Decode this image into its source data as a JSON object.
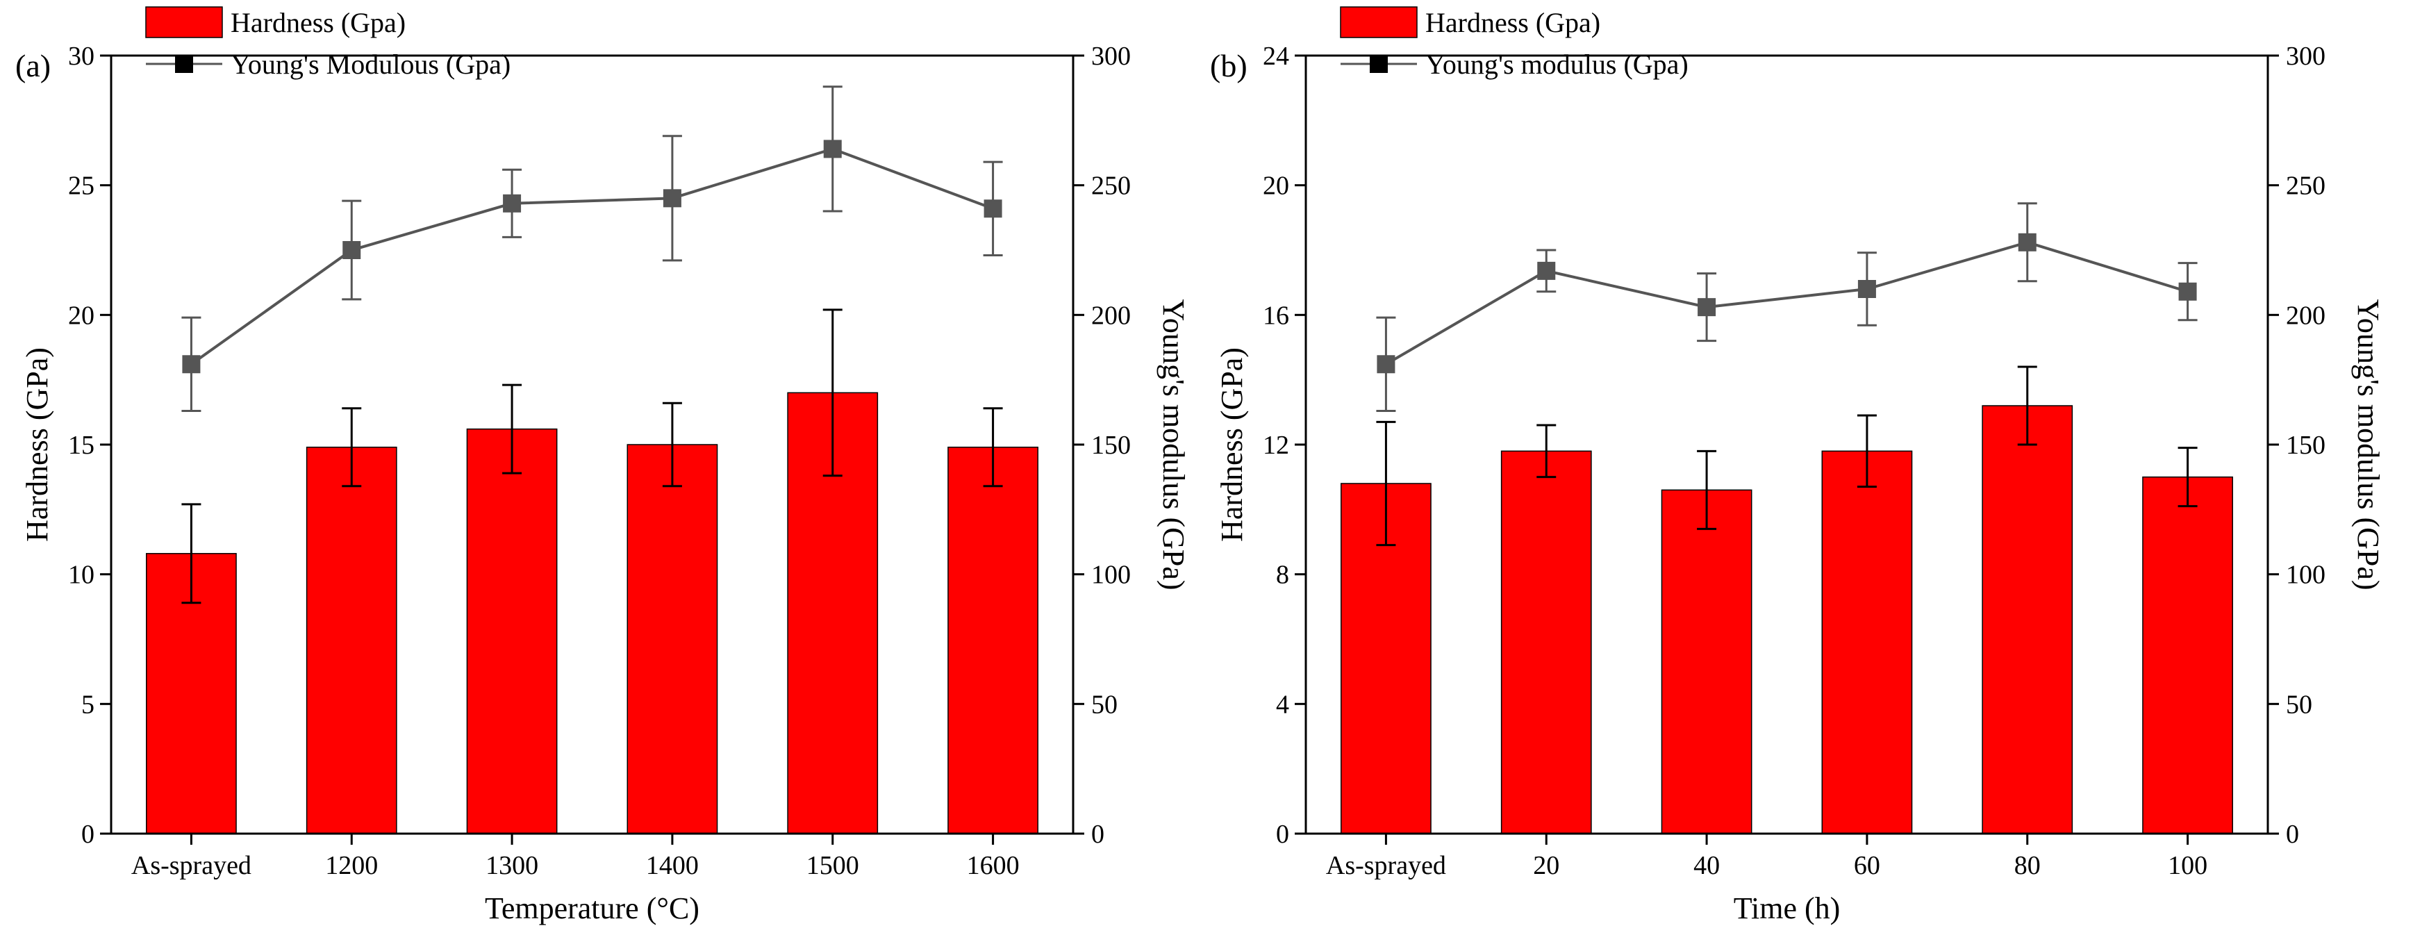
{
  "colors": {
    "bar": "#ff0000",
    "bar_stroke": "#000000",
    "line": "#555555",
    "marker": "#555555",
    "errorbar": "#000000",
    "axis": "#000000"
  },
  "chart_data": [
    {
      "type": "bar",
      "panel_label": "(a)",
      "title": "",
      "xlabel": "Temperature (°C)",
      "ylabel": "Hardness (GPa)",
      "y2label": "Young's modulus (GPa)",
      "categories": [
        "As-sprayed",
        "1200",
        "1300",
        "1400",
        "1500",
        "1600"
      ],
      "ylim": [
        0,
        30
      ],
      "yticks": [
        0,
        5,
        10,
        15,
        20,
        25,
        30
      ],
      "y2lim": [
        0,
        300
      ],
      "y2ticks": [
        0,
        50,
        100,
        150,
        200,
        250,
        300
      ],
      "legend_position": "top-left",
      "series": [
        {
          "name": "Hardness (Gpa)",
          "kind": "bar",
          "axis": "left",
          "values": [
            10.8,
            14.9,
            15.6,
            15.0,
            17.0,
            14.9
          ],
          "errors": [
            1.9,
            1.5,
            1.7,
            1.6,
            3.2,
            1.5
          ]
        },
        {
          "name": "Young's Modulous (Gpa)",
          "kind": "line",
          "axis": "right",
          "values": [
            181,
            225,
            243,
            245,
            264,
            241
          ],
          "errors": [
            18,
            19,
            13,
            24,
            24,
            18
          ]
        }
      ]
    },
    {
      "type": "bar",
      "panel_label": "(b)",
      "title": "",
      "xlabel": "Time (h)",
      "ylabel": "Hardness (GPa)",
      "y2label": "Young's modulus (GPa)",
      "categories": [
        "As-sprayed",
        "20",
        "40",
        "60",
        "80",
        "100"
      ],
      "ylim": [
        0,
        24
      ],
      "yticks": [
        0,
        4,
        8,
        12,
        16,
        20,
        24
      ],
      "y2lim": [
        0,
        300
      ],
      "y2ticks": [
        0,
        50,
        100,
        150,
        200,
        250,
        300
      ],
      "legend_position": "top-left",
      "series": [
        {
          "name": "Hardness (Gpa)",
          "kind": "bar",
          "axis": "left",
          "values": [
            10.8,
            11.8,
            10.6,
            11.8,
            13.2,
            11.0
          ],
          "errors": [
            1.9,
            0.8,
            1.2,
            1.1,
            1.2,
            0.9
          ]
        },
        {
          "name": "Young's modulus (Gpa)",
          "kind": "line",
          "axis": "right",
          "values": [
            181,
            217,
            203,
            210,
            228,
            209
          ],
          "errors": [
            18,
            8,
            13,
            14,
            15,
            11
          ]
        }
      ]
    }
  ]
}
